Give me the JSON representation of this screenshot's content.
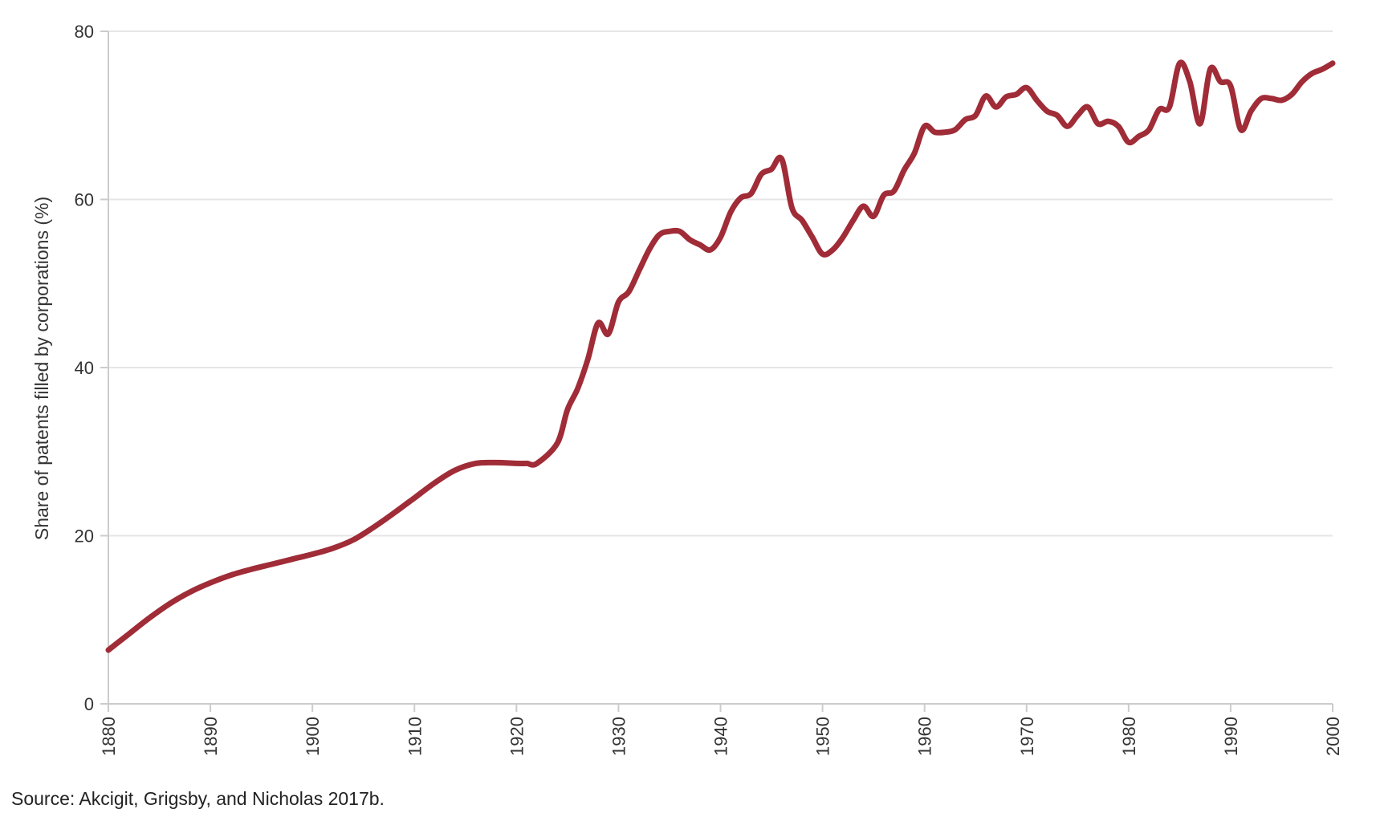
{
  "chart_data": {
    "type": "line",
    "title": "",
    "xlabel": "",
    "ylabel": "Share of patents filled by corporations (%)",
    "xlim": [
      1880,
      2000
    ],
    "ylim": [
      0,
      80
    ],
    "xticks": [
      1880,
      1890,
      1900,
      1910,
      1920,
      1930,
      1940,
      1950,
      1960,
      1970,
      1980,
      1990,
      2000
    ],
    "yticks": [
      0,
      20,
      40,
      60,
      80
    ],
    "grid": "horizontal",
    "line_color": "#a02c37",
    "series": [
      {
        "x": [
          1880,
          1882,
          1884,
          1886,
          1888,
          1890,
          1892,
          1894,
          1896,
          1898,
          1900,
          1902,
          1904,
          1906,
          1908,
          1910,
          1912,
          1914,
          1916,
          1918,
          1920,
          1921,
          1922,
          1924,
          1925,
          1926,
          1927,
          1928,
          1929,
          1930,
          1931,
          1932,
          1933,
          1934,
          1935,
          1936,
          1937,
          1938,
          1939,
          1940,
          1941,
          1942,
          1943,
          1944,
          1945,
          1946,
          1947,
          1948,
          1949,
          1950,
          1951,
          1952,
          1953,
          1954,
          1955,
          1956,
          1957,
          1958,
          1959,
          1960,
          1961,
          1962,
          1963,
          1964,
          1965,
          1966,
          1967,
          1968,
          1969,
          1970,
          1971,
          1972,
          1973,
          1974,
          1975,
          1976,
          1977,
          1978,
          1979,
          1980,
          1981,
          1982,
          1983,
          1984,
          1985,
          1986,
          1987,
          1988,
          1989,
          1990,
          1991,
          1992,
          1993,
          1994,
          1995,
          1996,
          1997,
          1998,
          1999,
          2000
        ],
        "y": [
          6.4,
          8.3,
          10.2,
          11.9,
          13.3,
          14.4,
          15.3,
          16.0,
          16.6,
          17.2,
          17.8,
          18.5,
          19.5,
          21.0,
          22.7,
          24.5,
          26.3,
          27.8,
          28.6,
          28.7,
          28.6,
          28.6,
          28.6,
          31.0,
          35.0,
          37.5,
          41.0,
          45.3,
          44.0,
          47.8,
          49.0,
          51.5,
          54.0,
          55.8,
          56.2,
          56.2,
          55.2,
          54.6,
          54.0,
          55.5,
          58.5,
          60.2,
          60.7,
          63.0,
          63.6,
          64.8,
          59.0,
          57.5,
          55.5,
          53.5,
          54.0,
          55.5,
          57.5,
          59.2,
          58.0,
          60.5,
          61.0,
          63.5,
          65.5,
          68.7,
          68.0,
          68.0,
          68.3,
          69.5,
          70.0,
          72.3,
          71.0,
          72.2,
          72.5,
          73.3,
          71.8,
          70.5,
          70.0,
          68.7,
          70.0,
          71.0,
          69.0,
          69.3,
          68.7,
          66.8,
          67.5,
          68.3,
          70.7,
          71.0,
          76.2,
          74.0,
          69.0,
          75.5,
          74.0,
          73.5,
          68.3,
          70.5,
          72.0,
          72.0,
          71.8,
          72.5,
          74.0,
          75.0,
          75.5,
          76.2
        ]
      }
    ]
  },
  "source_text": "Source: Akcigit, Grigsby, and Nicholas 2017b."
}
